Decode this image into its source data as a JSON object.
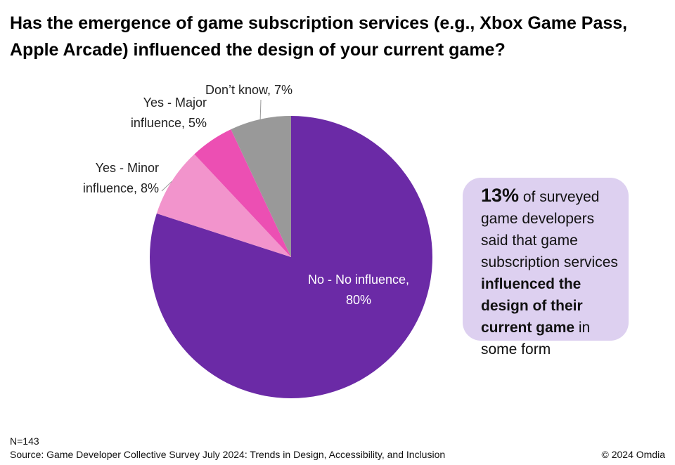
{
  "title": "Has the emergence of game subscription services (e.g., Xbox Game Pass, Apple Arcade) influenced the design of your current game?",
  "chart_data": {
    "type": "pie",
    "title": "Has the emergence of game subscription services (e.g., Xbox Game Pass, Apple Arcade) influenced the design of your current game?",
    "slices": [
      {
        "label": "No - No influence",
        "value": 80,
        "color": "#6b2aa6"
      },
      {
        "label": "Yes - Minor influence",
        "value": 8,
        "color": "#f294cc"
      },
      {
        "label": "Yes - Major influence",
        "value": 5,
        "color": "#ec4fb3"
      },
      {
        "label": "Don’t know",
        "value": 7,
        "color": "#999999"
      }
    ],
    "data_labels": {
      "no_influence_line1": "No - No influence,",
      "no_influence_line2": "80%",
      "minor_line1": "Yes - Minor",
      "minor_line2": "influence, 8%",
      "major_line1": "Yes - Major",
      "major_line2": "influence, 5%",
      "dont_know": "Don’t know, 7%"
    }
  },
  "callout": {
    "percent": "13%",
    "text_a": " of surveyed game developers said that game subscription services ",
    "text_bold": "influenced the design of their current game",
    "text_b": " in some form"
  },
  "footer": {
    "n": "N=143",
    "source": "Source: Game Developer Collective Survey July 2024: Trends in Design, Accessibility, and Inclusion",
    "copyright": "© 2024 Omdia"
  }
}
